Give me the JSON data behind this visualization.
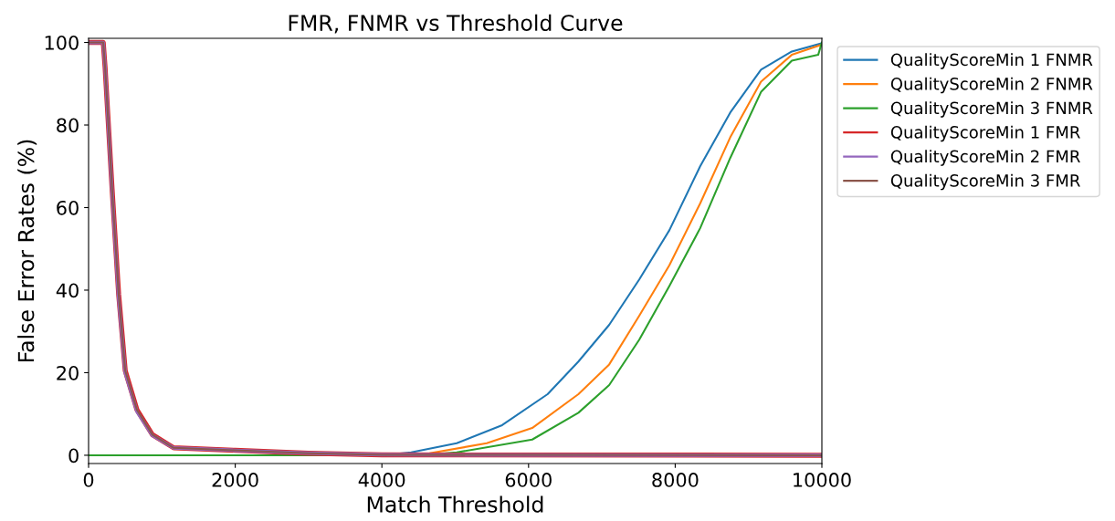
{
  "chart_data": {
    "type": "line",
    "title": "FMR, FNMR vs Threshold Curve",
    "xlabel": "Match Threshold",
    "ylabel": "False Error Rates (%)",
    "xlim": [
      0,
      10000
    ],
    "xticks": [
      0,
      2000,
      4000,
      6000,
      8000,
      10000
    ],
    "ylim": [
      -2,
      101
    ],
    "yticks": [
      0,
      20,
      40,
      60,
      80,
      100
    ],
    "grid": false,
    "legend": "right",
    "line_style": "solid",
    "marker": "none",
    "series": [
      {
        "name": "QualityScoreMin 1 FNMR",
        "color": "#1f77b4",
        "x": [
          0,
          4000,
          4400,
          5020,
          5640,
          6260,
          6680,
          7100,
          7510,
          7920,
          8340,
          8750,
          9170,
          9590,
          10000
        ],
        "values": [
          0,
          0,
          0.7,
          2.9,
          7.3,
          14.8,
          22.7,
          31.6,
          42.6,
          54.5,
          70,
          83,
          93.4,
          97.8,
          99.8
        ]
      },
      {
        "name": "QualityScoreMin 2 FNMR",
        "color": "#ff7f0e",
        "x": [
          0,
          4300,
          4650,
          5430,
          6050,
          6680,
          7100,
          7510,
          7920,
          8340,
          8750,
          9170,
          9590,
          10000
        ],
        "values": [
          0,
          0,
          0.5,
          2.9,
          6.6,
          14.8,
          22,
          33.8,
          46,
          61,
          77,
          90.5,
          97,
          99.5
        ]
      },
      {
        "name": "QualityScoreMin 3 FNMR",
        "color": "#2ca02c",
        "x": [
          0,
          4500,
          5020,
          6050,
          6680,
          7100,
          7510,
          7920,
          8340,
          8750,
          9170,
          9590,
          9950,
          10000
        ],
        "values": [
          0,
          0,
          0.7,
          3.8,
          10.3,
          17,
          28,
          41,
          55,
          72,
          88,
          95.6,
          97,
          100
        ]
      },
      {
        "name": "QualityScoreMin 1 FMR",
        "color": "#d62728",
        "x": [
          0,
          200,
          225,
          320,
          410,
          500,
          660,
          870,
          1160,
          2000,
          3000,
          4000,
          10000
        ],
        "values": [
          100,
          100,
          94,
          64.7,
          39,
          20.5,
          11,
          5,
          1.8,
          1.2,
          0.5,
          0.1,
          0
        ]
      },
      {
        "name": "QualityScoreMin 2 FMR",
        "color": "#9467bd",
        "x": [
          0,
          200,
          225,
          320,
          410,
          500,
          660,
          870,
          1160,
          2000,
          3000,
          4000,
          10000
        ],
        "values": [
          100,
          100,
          94,
          64,
          38,
          20,
          10.6,
          4.8,
          1.8,
          1.2,
          0.5,
          0.1,
          0
        ]
      },
      {
        "name": "QualityScoreMin 3 FMR",
        "color": "#8c564b",
        "x": [
          0,
          200,
          225,
          320,
          410,
          500,
          660,
          870,
          1160,
          2000,
          3000,
          4000,
          10000
        ],
        "values": [
          100,
          100,
          94,
          64.7,
          39,
          20.5,
          11,
          5,
          1.8,
          1.2,
          0.5,
          0.1,
          0
        ]
      }
    ]
  }
}
